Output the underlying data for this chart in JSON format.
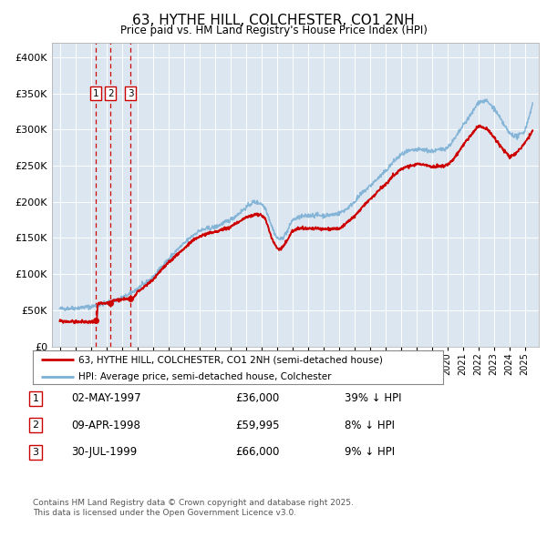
{
  "title": "63, HYTHE HILL, COLCHESTER, CO1 2NH",
  "subtitle": "Price paid vs. HM Land Registry's House Price Index (HPI)",
  "transactions": [
    {
      "label": "1",
      "date": "02-MAY-1997",
      "price": 36000,
      "price_str": "£36,000",
      "hpi_diff": "39% ↓ HPI"
    },
    {
      "label": "2",
      "date": "09-APR-1998",
      "price": 59995,
      "price_str": "£59,995",
      "hpi_diff": "8% ↓ HPI"
    },
    {
      "label": "3",
      "date": "30-JUL-1999",
      "price": 66000,
      "price_str": "£66,000",
      "hpi_diff": "9% ↓ HPI"
    }
  ],
  "transaction_dates_decimal": [
    1997.34,
    1998.27,
    1999.58
  ],
  "transaction_prices": [
    36000,
    59995,
    66000
  ],
  "legend_line1": "63, HYTHE HILL, COLCHESTER, CO1 2NH (semi-detached house)",
  "legend_line2": "HPI: Average price, semi-detached house, Colchester",
  "footnote1": "Contains HM Land Registry data © Crown copyright and database right 2025.",
  "footnote2": "This data is licensed under the Open Government Licence v3.0.",
  "red_color": "#cc0000",
  "blue_color": "#7bafd4",
  "background_color": "#dce6f1",
  "ylim": [
    0,
    420000
  ],
  "yticks": [
    0,
    50000,
    100000,
    150000,
    200000,
    250000,
    300000,
    350000,
    400000
  ],
  "xlim_start": 1994.5,
  "xlim_end": 2025.9,
  "hpi_anchors": [
    [
      1995.0,
      52000
    ],
    [
      1995.5,
      52500
    ],
    [
      1996.0,
      53000
    ],
    [
      1996.5,
      54000
    ],
    [
      1997.0,
      55000
    ],
    [
      1997.5,
      57000
    ],
    [
      1998.0,
      60000
    ],
    [
      1998.5,
      63000
    ],
    [
      1999.0,
      67000
    ],
    [
      1999.5,
      72000
    ],
    [
      2000.0,
      80000
    ],
    [
      2000.5,
      87000
    ],
    [
      2001.0,
      95000
    ],
    [
      2001.5,
      108000
    ],
    [
      2002.0,
      120000
    ],
    [
      2002.5,
      132000
    ],
    [
      2003.0,
      142000
    ],
    [
      2003.5,
      152000
    ],
    [
      2004.0,
      160000
    ],
    [
      2004.5,
      163000
    ],
    [
      2005.0,
      165000
    ],
    [
      2005.5,
      170000
    ],
    [
      2006.0,
      175000
    ],
    [
      2006.5,
      183000
    ],
    [
      2007.0,
      192000
    ],
    [
      2007.5,
      200000
    ],
    [
      2008.0,
      198000
    ],
    [
      2008.3,
      190000
    ],
    [
      2008.7,
      165000
    ],
    [
      2009.0,
      150000
    ],
    [
      2009.3,
      148000
    ],
    [
      2009.7,
      160000
    ],
    [
      2010.0,
      175000
    ],
    [
      2010.5,
      179000
    ],
    [
      2011.0,
      181000
    ],
    [
      2011.5,
      182000
    ],
    [
      2012.0,
      181000
    ],
    [
      2012.5,
      182000
    ],
    [
      2013.0,
      184000
    ],
    [
      2013.5,
      190000
    ],
    [
      2014.0,
      200000
    ],
    [
      2014.5,
      212000
    ],
    [
      2015.0,
      222000
    ],
    [
      2015.5,
      232000
    ],
    [
      2016.0,
      242000
    ],
    [
      2016.5,
      255000
    ],
    [
      2017.0,
      265000
    ],
    [
      2017.5,
      270000
    ],
    [
      2018.0,
      272000
    ],
    [
      2018.5,
      272000
    ],
    [
      2019.0,
      270000
    ],
    [
      2019.5,
      272000
    ],
    [
      2020.0,
      275000
    ],
    [
      2020.5,
      288000
    ],
    [
      2021.0,
      305000
    ],
    [
      2021.5,
      320000
    ],
    [
      2022.0,
      338000
    ],
    [
      2022.5,
      340000
    ],
    [
      2023.0,
      330000
    ],
    [
      2023.5,
      312000
    ],
    [
      2024.0,
      295000
    ],
    [
      2024.5,
      290000
    ],
    [
      2025.0,
      298000
    ],
    [
      2025.5,
      335000
    ]
  ],
  "pp_anchors": [
    [
      1995.0,
      35000
    ],
    [
      1995.5,
      34500
    ],
    [
      1996.0,
      34000
    ],
    [
      1996.5,
      33800
    ],
    [
      1997.0,
      34000
    ],
    [
      1997.34,
      36000
    ],
    [
      1997.4,
      36000
    ],
    [
      1997.45,
      59000
    ],
    [
      1998.27,
      59995
    ],
    [
      1998.35,
      60000
    ],
    [
      1998.4,
      64000
    ],
    [
      1999.58,
      66000
    ],
    [
      1999.7,
      66500
    ],
    [
      2000.0,
      75000
    ],
    [
      2000.5,
      83000
    ],
    [
      2001.0,
      92000
    ],
    [
      2001.5,
      105000
    ],
    [
      2002.0,
      115000
    ],
    [
      2002.5,
      126000
    ],
    [
      2003.0,
      135000
    ],
    [
      2003.5,
      145000
    ],
    [
      2004.0,
      152000
    ],
    [
      2004.5,
      156000
    ],
    [
      2005.0,
      158000
    ],
    [
      2005.5,
      162000
    ],
    [
      2006.0,
      165000
    ],
    [
      2006.5,
      172000
    ],
    [
      2007.0,
      178000
    ],
    [
      2007.5,
      182000
    ],
    [
      2008.0,
      182000
    ],
    [
      2008.3,
      175000
    ],
    [
      2008.7,
      148000
    ],
    [
      2009.0,
      136000
    ],
    [
      2009.3,
      135000
    ],
    [
      2009.7,
      148000
    ],
    [
      2010.0,
      160000
    ],
    [
      2010.5,
      163000
    ],
    [
      2011.0,
      163000
    ],
    [
      2011.5,
      163000
    ],
    [
      2012.0,
      162000
    ],
    [
      2012.5,
      163000
    ],
    [
      2013.0,
      163000
    ],
    [
      2013.5,
      170000
    ],
    [
      2014.0,
      180000
    ],
    [
      2014.5,
      192000
    ],
    [
      2015.0,
      203000
    ],
    [
      2015.5,
      214000
    ],
    [
      2016.0,
      224000
    ],
    [
      2016.5,
      236000
    ],
    [
      2017.0,
      245000
    ],
    [
      2017.5,
      250000
    ],
    [
      2018.0,
      252000
    ],
    [
      2018.5,
      252000
    ],
    [
      2019.0,
      248000
    ],
    [
      2019.5,
      249000
    ],
    [
      2020.0,
      250000
    ],
    [
      2020.5,
      262000
    ],
    [
      2021.0,
      278000
    ],
    [
      2021.5,
      292000
    ],
    [
      2022.0,
      305000
    ],
    [
      2022.5,
      302000
    ],
    [
      2023.0,
      290000
    ],
    [
      2023.5,
      275000
    ],
    [
      2024.0,
      262000
    ],
    [
      2024.5,
      268000
    ],
    [
      2025.0,
      282000
    ],
    [
      2025.5,
      298000
    ]
  ]
}
